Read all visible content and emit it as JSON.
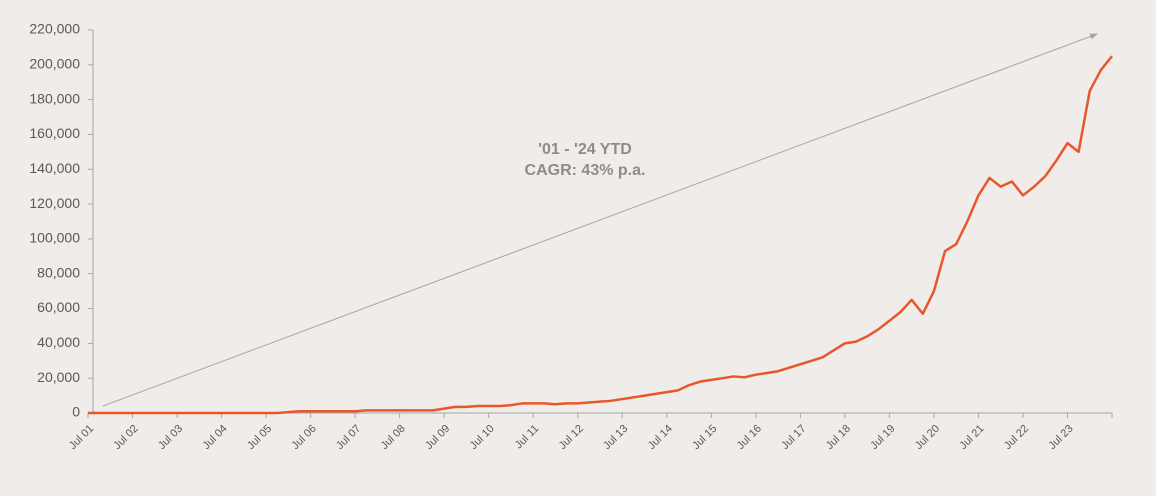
{
  "chart_data": {
    "type": "line",
    "annotations": [
      "'01 - '24 YTD",
      "CAGR: 43% p.a."
    ],
    "categories": [
      "Jul 01",
      null,
      null,
      null,
      "Jul 02",
      null,
      null,
      null,
      "Jul 03",
      null,
      null,
      null,
      "Jul 04",
      null,
      null,
      null,
      "Jul 05",
      null,
      null,
      null,
      "Jul 06",
      null,
      null,
      null,
      "Jul 07",
      null,
      null,
      null,
      "Jul 08",
      null,
      null,
      null,
      "Jul 09",
      null,
      null,
      null,
      "Jul 10",
      null,
      null,
      null,
      "Jul 11",
      null,
      null,
      null,
      "Jul 12",
      null,
      null,
      null,
      "Jul 13",
      null,
      null,
      null,
      "Jul 14",
      null,
      null,
      null,
      "Jul 15",
      null,
      null,
      null,
      "Jul 16",
      null,
      null,
      null,
      "Jul 17",
      null,
      null,
      null,
      "Jul 18",
      null,
      null,
      null,
      "Jul 19",
      null,
      null,
      null,
      "Jul 20",
      null,
      null,
      null,
      "Jul 21",
      null,
      null,
      null,
      "Jul 22",
      null,
      null,
      null,
      "Jul 23",
      null,
      null,
      null,
      null
    ],
    "values": [
      0,
      0,
      0,
      0,
      0,
      0,
      0,
      0,
      0,
      0,
      0,
      0,
      0,
      0,
      0,
      0,
      0,
      0,
      500,
      1000,
      1000,
      1000,
      1000,
      1000,
      1000,
      1500,
      1500,
      1500,
      1500,
      1500,
      1500,
      1500,
      2500,
      3500,
      3500,
      4000,
      4000,
      4000,
      4500,
      5500,
      5500,
      5500,
      5000,
      5500,
      5500,
      6000,
      6500,
      7000,
      8000,
      9000,
      10000,
      11000,
      12000,
      13000,
      16000,
      18000,
      19000,
      20000,
      21000,
      20500,
      22000,
      23000,
      24000,
      26000,
      28000,
      30000,
      32000,
      36000,
      40000,
      41000,
      44000,
      48000,
      53000,
      58000,
      65000,
      57000,
      70000,
      93000,
      97000,
      110000,
      125000,
      135000,
      130000,
      133000,
      125000,
      130000,
      136000,
      145000,
      155000,
      150000,
      185000,
      197000,
      205000
    ],
    "color": "#e8572a",
    "ylim": [
      0,
      220000
    ],
    "yticks": [
      0,
      {
        "value": 20000,
        "label": "20,000"
      },
      {
        "value": 40000,
        "label": "40,000"
      },
      {
        "value": 60000,
        "label": "60,000"
      },
      {
        "value": 80000,
        "label": "80,000"
      },
      {
        "value": 100000,
        "label": "100,000"
      },
      {
        "value": 120000,
        "label": "120,000"
      },
      {
        "value": 140000,
        "label": "140,000"
      },
      {
        "value": 160000,
        "label": "160,000"
      },
      {
        "value": 180000,
        "label": "180,000"
      },
      {
        "value": 200000,
        "label": "200,000"
      },
      {
        "value": 220000,
        "label": "220,000"
      }
    ],
    "grid": false
  }
}
